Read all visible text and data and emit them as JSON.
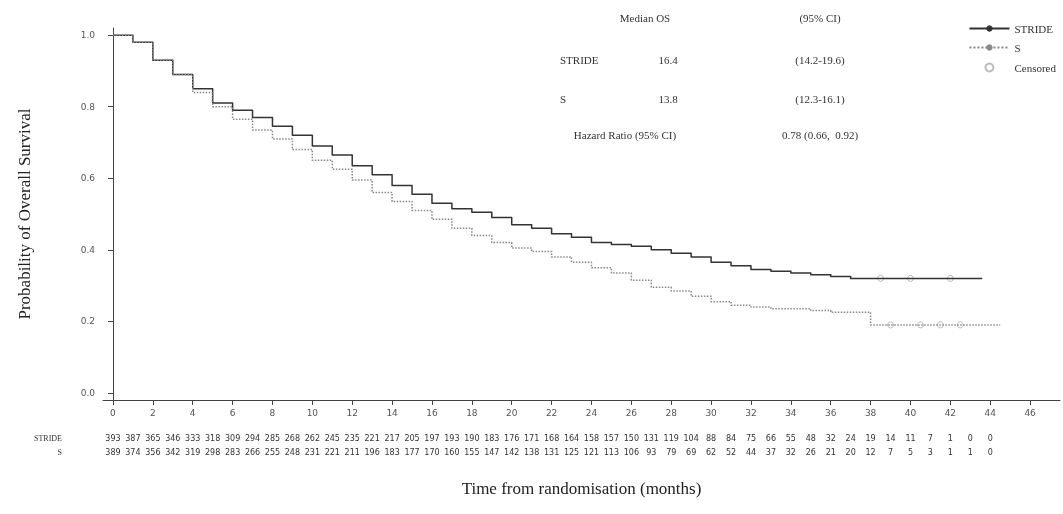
{
  "chart_data": {
    "type": "step",
    "xlabel": "Time from randomisation (months)",
    "ylabel": "Probability of Overall Survival",
    "xlim": [
      -0.5,
      47.5
    ],
    "xticks": [
      0,
      2,
      4,
      6,
      8,
      10,
      12,
      14,
      16,
      18,
      20,
      22,
      24,
      26,
      28,
      30,
      32,
      34,
      36,
      38,
      40,
      42,
      44,
      46
    ],
    "ylim": [
      -0.02,
      1.02
    ],
    "yticks": [
      {
        "value": 0,
        "label": "0.0"
      },
      {
        "value": 0.2,
        "label": "0.2"
      },
      {
        "value": 0.4,
        "label": "0.4"
      },
      {
        "value": 0.6,
        "label": "0.6"
      },
      {
        "value": 0.8,
        "label": "0.8"
      },
      {
        "value": 1,
        "label": "1.0"
      }
    ],
    "grid": false,
    "legend": "top right",
    "marker": "none",
    "series": [
      {
        "name": "STRIDE",
        "color": "#333333",
        "line_style": "solid",
        "x": [
          0,
          1,
          2,
          3,
          4,
          5,
          6,
          7,
          8,
          9,
          10,
          11,
          12,
          13,
          14,
          15,
          16,
          17,
          18,
          19,
          20,
          21,
          22,
          23,
          24,
          25,
          26,
          27,
          28,
          29,
          30,
          31,
          32,
          33,
          34,
          35,
          36,
          37,
          43.6
        ],
        "values": [
          1.0,
          0.98,
          0.93,
          0.89,
          0.85,
          0.81,
          0.79,
          0.77,
          0.745,
          0.72,
          0.69,
          0.665,
          0.635,
          0.61,
          0.58,
          0.555,
          0.53,
          0.515,
          0.505,
          0.49,
          0.47,
          0.46,
          0.445,
          0.435,
          0.42,
          0.415,
          0.41,
          0.4,
          0.39,
          0.38,
          0.365,
          0.355,
          0.345,
          0.34,
          0.335,
          0.33,
          0.325,
          0.32,
          0.32
        ]
      },
      {
        "name": "S",
        "color": "#888888",
        "line_style": "dotted",
        "x": [
          0,
          1,
          2,
          3,
          4,
          5,
          6,
          7,
          8,
          9,
          10,
          11,
          12,
          13,
          14,
          15,
          16,
          17,
          18,
          19,
          20,
          21,
          22,
          23,
          24,
          25,
          26,
          27,
          28,
          29,
          30,
          31,
          32,
          33,
          34,
          35,
          36,
          38,
          44.5
        ],
        "values": [
          1.0,
          0.98,
          0.93,
          0.89,
          0.84,
          0.8,
          0.765,
          0.735,
          0.71,
          0.68,
          0.65,
          0.625,
          0.595,
          0.56,
          0.535,
          0.51,
          0.485,
          0.46,
          0.44,
          0.42,
          0.405,
          0.395,
          0.38,
          0.365,
          0.35,
          0.335,
          0.315,
          0.295,
          0.285,
          0.27,
          0.255,
          0.245,
          0.24,
          0.235,
          0.235,
          0.23,
          0.225,
          0.19,
          0.19
        ]
      },
      {
        "name": "Censored",
        "type": "scatter",
        "marker": "circle",
        "color": "#aaaaaa",
        "x": [
          38.5,
          40,
          42,
          39,
          40.5,
          41.5,
          42.5
        ],
        "values": [
          0.32,
          0.32,
          0.32,
          0.19,
          0.19,
          0.19,
          0.19
        ]
      }
    ],
    "annotations": [
      "Median OS",
      "(95% CI)",
      "STRIDE",
      "16.4",
      "(14.2-19.6)",
      "S",
      "13.8",
      "(12.3-16.1)",
      "Hazard Ratio (95% CI)",
      "0.78 (0.66,  0.92)",
      "STRIDE",
      "393 387 365 346 333 318 309 294 285 268 262 245 235 221 217 205 197 193 190 183 176 171 168 164 158 157 150 131 119 104 88 84 75 66 55 48 32 24 19 14 11 7 1 0 0",
      "S",
      "389 374 356 342 319 298 283 266 255 248 231 221 211 196 183 177 170 160 155 147 142 138 131 125 121 113 106 93 79 69 62 52 44 37 32 26 21 20 12 7 5 3 1 1 0"
    ]
  }
}
